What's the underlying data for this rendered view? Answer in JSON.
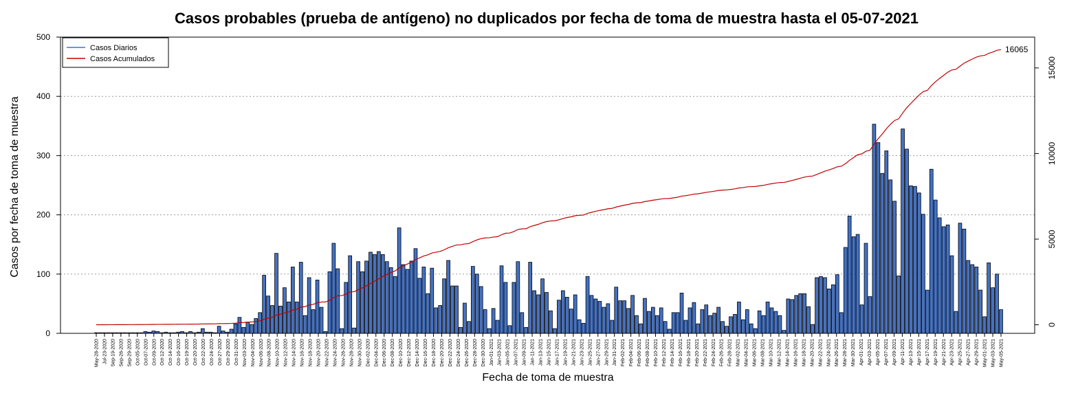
{
  "chart_data": {
    "type": "bar",
    "title": "Casos probables (prueba de antígeno) no duplicados por fecha de toma de muestra hasta el 05-07-2021",
    "xlabel": "Fecha de toma de muestra",
    "ylabel": "Casos por fecha de toma de muestra",
    "ylim": [
      0,
      500
    ],
    "y_ticks": [
      0,
      100,
      200,
      300,
      400,
      500
    ],
    "y2lim": [
      -500,
      16800
    ],
    "y2_ticks": [
      0,
      5000,
      10000,
      15000
    ],
    "grid": "horizontal dotted",
    "legend_position": "top-left",
    "final_cumulative_label": "16065",
    "start_date": "2020-05-28",
    "x_tick_labels": [
      "May-28-2020",
      "Jul-23-2020",
      "Sep-19-2020",
      "Sep-26-2020",
      "Sep-29-2020",
      "Oct-05-2020",
      "Oct-07-2020",
      "Oct-09-2020",
      "Oct-12-2020",
      "Oct-14-2020",
      "Oct-16-2020",
      "Oct-19-2020",
      "Oct-20-2020",
      "Oct-22-2020",
      "Oct-24-2020",
      "Oct-27-2020",
      "Oct-29-2020",
      "Oct-31-2020",
      "Nov-03-2020",
      "Nov-04-2020",
      "Nov-06-2020",
      "Nov-08-2020",
      "Nov-10-2020",
      "Nov-12-2020",
      "Nov-14-2020",
      "Nov-16-2020",
      "Nov-18-2020",
      "Nov-20-2020",
      "Nov-22-2020",
      "Nov-24-2020",
      "Nov-26-2020",
      "Nov-28-2020",
      "Nov-30-2020",
      "Dec-02-2020",
      "Dec-04-2020",
      "Dec-06-2020",
      "Dec-08-2020",
      "Dec-10-2020",
      "Dec-12-2020",
      "Dec-14-2020",
      "Dec-16-2020",
      "Dec-18-2020",
      "Dec-20-2020",
      "Dec-22-2020",
      "Dec-24-2020",
      "Dec-26-2020",
      "Dec-28-2020",
      "Dec-30-2020",
      "Jan-01-2021",
      "Jan-03-2021",
      "Jan-05-2021",
      "Jan-07-2021",
      "Jan-09-2021",
      "Jan-11-2021",
      "Jan-13-2021",
      "Jan-15-2021",
      "Jan-17-2021",
      "Jan-19-2021",
      "Jan-21-2021",
      "Jan-23-2021",
      "Jan-25-2021",
      "Jan-27-2021",
      "Jan-29-2021",
      "Jan-31-2021",
      "Feb-02-2021",
      "Feb-04-2021",
      "Feb-06-2021",
      "Feb-08-2021",
      "Feb-10-2021",
      "Feb-12-2021",
      "Feb-14-2021",
      "Feb-16-2021",
      "Feb-18-2021",
      "Feb-20-2021",
      "Feb-22-2021",
      "Feb-24-2021",
      "Feb-26-2021",
      "Feb-28-2021",
      "Mar-02-2021",
      "Mar-04-2021",
      "Mar-06-2021",
      "Mar-08-2021",
      "Mar-10-2021",
      "Mar-12-2021",
      "Mar-14-2021",
      "Mar-16-2021",
      "Mar-18-2021",
      "Mar-20-2021",
      "Mar-22-2021",
      "Mar-24-2021",
      "Mar-26-2021",
      "Mar-28-2021",
      "Mar-30-2021",
      "Apr-01-2021",
      "Apr-03-2021",
      "Apr-05-2021",
      "Apr-07-2021",
      "Apr-09-2021",
      "Apr-11-2021",
      "Apr-13-2021",
      "Apr-15-2021",
      "Apr-17-2021",
      "Apr-19-2021",
      "Apr-21-2021",
      "Apr-23-2021",
      "Apr-25-2021",
      "Apr-27-2021",
      "Apr-29-2021",
      "May-01-2021",
      "May-03-2021",
      "May-05-2021"
    ],
    "series": [
      {
        "name": "Casos Diarios",
        "color": "#4472C4",
        "axis": "left",
        "values": [
          1,
          1,
          1,
          1,
          1,
          1,
          1,
          1,
          1,
          1,
          1,
          1,
          3,
          2,
          4,
          3,
          1,
          2,
          1,
          1,
          2,
          3,
          1,
          3,
          1,
          2,
          8,
          2,
          2,
          1,
          12,
          4,
          2,
          7,
          16,
          27,
          10,
          19,
          15,
          25,
          35,
          98,
          63,
          47,
          135,
          46,
          77,
          53,
          112,
          53,
          120,
          30,
          94,
          40,
          90,
          44,
          3,
          104,
          152,
          109,
          8,
          86,
          131,
          9,
          121,
          104,
          122,
          137,
          133,
          138,
          133,
          121,
          111,
          96,
          178,
          116,
          108,
          122,
          143,
          93,
          112,
          67,
          110,
          43,
          47,
          92,
          123,
          80,
          80,
          10,
          51,
          20,
          113,
          100,
          79,
          40,
          8,
          42,
          22,
          114,
          86,
          13,
          86,
          121,
          35,
          10,
          120,
          72,
          65,
          92,
          69,
          38,
          8,
          56,
          72,
          61,
          41,
          65,
          23,
          17,
          96,
          64,
          58,
          54,
          44,
          50,
          22,
          78,
          55,
          55,
          42,
          64,
          30,
          16,
          59,
          37,
          44,
          30,
          43,
          20,
          7,
          35,
          35,
          68,
          22,
          43,
          52,
          16,
          40,
          48,
          30,
          34,
          44,
          20,
          12,
          28,
          32,
          53,
          23,
          40,
          16,
          8,
          38,
          30,
          53,
          43,
          37,
          30,
          5,
          58,
          57,
          64,
          67,
          67,
          45,
          15,
          94,
          96,
          94,
          75,
          82,
          99,
          35,
          145,
          198,
          163,
          167,
          48,
          152,
          62,
          353,
          322,
          270,
          308,
          259,
          223,
          97,
          345,
          311,
          249,
          248,
          237,
          201,
          73,
          277,
          225,
          195,
          180,
          183,
          131,
          37,
          186,
          176,
          123,
          116,
          112,
          73,
          28,
          119,
          77,
          100,
          40
        ]
      },
      {
        "name": "Casos Acumulados",
        "color": "#C00000",
        "axis": "right"
      }
    ]
  }
}
